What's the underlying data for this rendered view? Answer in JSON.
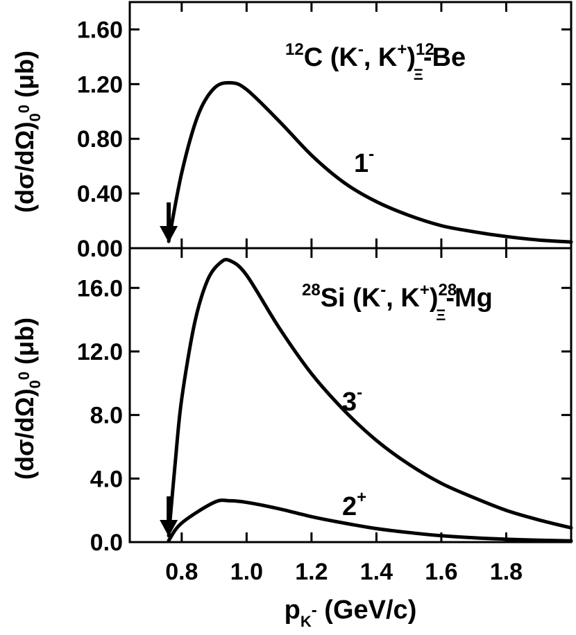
{
  "chart_data": [
    {
      "panel": "top",
      "type": "line",
      "reaction": {
        "pre1": "12",
        "t1": "C (K",
        "s1": "-",
        "t2": ", K",
        "s2": "+",
        "t3": ")",
        "s3": "12",
        "b3": "Ξ",
        "t4": "-Be"
      },
      "ylabel": {
        "a": "(dσ/dΩ)",
        "sub": "0",
        "subsup": "0",
        "b": " (μb)"
      },
      "ylim": [
        0,
        1.8
      ],
      "yticks": [
        0.0,
        0.4,
        0.8,
        1.2,
        1.6
      ],
      "ytick_labels": [
        "0.00",
        "0.40",
        "0.80",
        "1.20",
        "1.60"
      ],
      "xlim": [
        0.64,
        2.0
      ],
      "threshold_arrow_x": 0.76,
      "series": [
        {
          "label": {
            "text": "1",
            "sup": "-"
          },
          "x": [
            0.76,
            0.8,
            0.85,
            0.9,
            0.95,
            1.0,
            1.1,
            1.2,
            1.3,
            1.4,
            1.5,
            1.6,
            1.7,
            1.8,
            1.9,
            2.0
          ],
          "values": [
            0.05,
            0.55,
            0.97,
            1.17,
            1.21,
            1.16,
            0.93,
            0.68,
            0.48,
            0.34,
            0.24,
            0.165,
            0.12,
            0.085,
            0.06,
            0.045
          ]
        }
      ]
    },
    {
      "panel": "bottom",
      "type": "line",
      "reaction": {
        "pre1": "28",
        "t1": "Si (K",
        "s1": "-",
        "t2": ", K",
        "s2": "+",
        "t3": ")",
        "s3": "28",
        "b3": "Ξ",
        "t4": "-Mg"
      },
      "ylabel": {
        "a": "(dσ/dΩ)",
        "sub": "0",
        "subsup": "0",
        "b": " (μb)"
      },
      "ylim": [
        0,
        18.5
      ],
      "yticks": [
        0.0,
        4.0,
        8.0,
        12.0,
        16.0
      ],
      "ytick_labels": [
        "0.0",
        "4.0",
        "8.0",
        "12.0",
        "16.0"
      ],
      "xlim": [
        0.64,
        2.0
      ],
      "xticks": [
        0.8,
        1.0,
        1.2,
        1.4,
        1.6,
        1.8
      ],
      "xtick_labels": [
        "0.8",
        "1.0",
        "1.2",
        "1.4",
        "1.6",
        "1.8"
      ],
      "xlabel": {
        "a": "p",
        "sub": "K",
        "subsup": "-",
        "b": " (GeV/c)"
      },
      "threshold_arrow_x": 0.76,
      "series": [
        {
          "label": {
            "text": "3",
            "sup": "-"
          },
          "x": [
            0.76,
            0.78,
            0.8,
            0.84,
            0.88,
            0.92,
            0.95,
            1.0,
            1.1,
            1.2,
            1.3,
            1.4,
            1.5,
            1.6,
            1.7,
            1.8,
            1.9,
            2.0
          ],
          "values": [
            0.4,
            5.0,
            9.0,
            13.8,
            16.5,
            17.6,
            17.7,
            16.8,
            13.5,
            10.6,
            8.3,
            6.4,
            4.9,
            3.7,
            2.8,
            2.0,
            1.4,
            0.9
          ]
        },
        {
          "label": {
            "text": "2",
            "sup": "+"
          },
          "x": [
            0.76,
            0.8,
            0.9,
            0.95,
            1.0,
            1.1,
            1.2,
            1.3,
            1.4,
            1.5,
            1.6,
            1.7,
            1.8,
            1.9,
            2.0
          ],
          "values": [
            0.1,
            1.2,
            2.5,
            2.6,
            2.5,
            2.1,
            1.6,
            1.2,
            0.85,
            0.6,
            0.4,
            0.27,
            0.18,
            0.12,
            0.08
          ]
        }
      ]
    }
  ]
}
